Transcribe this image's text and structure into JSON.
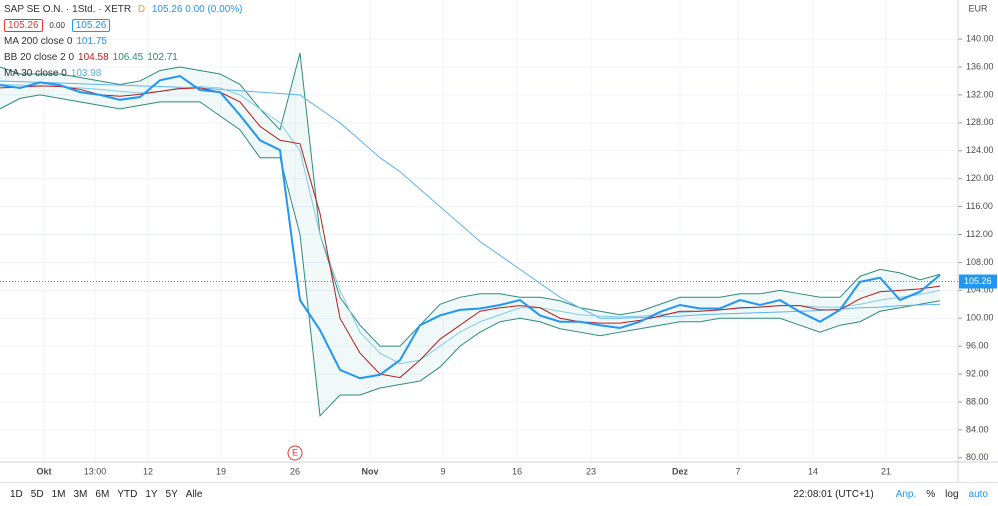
{
  "header": {
    "symbol": "SAP SE O.N. · 1Std. · XETR",
    "bid": "105.26",
    "spread": "0.00",
    "ask": "105.26",
    "change": "105.26 0.00 (0.00%)",
    "badge": "D"
  },
  "indicators": [
    {
      "name": "MA 200 close 0",
      "values": [
        "101.75"
      ]
    },
    {
      "name": "BB 20 close 2 0",
      "values": [
        "104.58",
        "106.45",
        "102.71"
      ]
    },
    {
      "name": "MA 30 close 0",
      "values": [
        "103.98"
      ]
    }
  ],
  "currency": "EUR",
  "event_marker": "E",
  "toolbar": {
    "ranges": [
      "1D",
      "5D",
      "1M",
      "3M",
      "6M",
      "YTD",
      "1Y",
      "5Y",
      "Alle"
    ],
    "clock": "22:08:01 (UTC+1)",
    "options": [
      "Anp.",
      "%",
      "log",
      "auto"
    ]
  },
  "chart_data": {
    "type": "line",
    "x": [
      0,
      2,
      4,
      6,
      8,
      10,
      12,
      14,
      16,
      18,
      20,
      22,
      24,
      26,
      28,
      30,
      32,
      34,
      36,
      38,
      40,
      42,
      44,
      46,
      48,
      50,
      52,
      54,
      56,
      58,
      60,
      62,
      64,
      66,
      68,
      70,
      72,
      74,
      76,
      78,
      80,
      82,
      84,
      86,
      88,
      90,
      92,
      94
    ],
    "series": [
      {
        "name": "BB upper",
        "color": "#2e8b7a",
        "values": [
          136,
          135,
          135,
          135,
          134.5,
          134,
          133.5,
          134,
          135.5,
          136,
          135.5,
          135,
          133.5,
          130,
          127,
          138,
          112,
          103,
          99,
          96,
          96,
          99,
          102,
          103,
          103.5,
          103.5,
          103,
          103,
          102.5,
          101.5,
          101,
          100.5,
          101,
          102,
          103,
          103,
          103,
          103.5,
          103.5,
          104,
          103.5,
          103,
          103,
          106,
          107,
          106.5,
          105.5,
          106.3
        ]
      },
      {
        "name": "BB lower",
        "color": "#2e8b7a",
        "values": [
          130,
          131.5,
          132,
          131.5,
          131,
          130.5,
          130,
          130.5,
          131,
          131,
          131,
          129,
          127,
          123,
          123,
          112,
          86,
          89,
          89,
          90,
          90.5,
          91,
          93,
          96,
          98,
          99.5,
          100,
          99.5,
          98.5,
          98,
          97.5,
          98,
          98.5,
          99,
          99.5,
          99.5,
          100,
          100,
          100,
          100,
          99,
          98,
          99,
          99.5,
          101,
          101.5,
          102,
          102.5
        ]
      },
      {
        "name": "MA 200",
        "color": "#5eb3f0",
        "values": [
          134,
          133.9,
          133.8,
          133.7,
          133.6,
          133.5,
          133.4,
          133.3,
          133.2,
          133.1,
          133,
          132.8,
          132.6,
          132.4,
          132.2,
          132,
          130,
          128,
          125.5,
          123,
          121,
          118.5,
          116,
          113.5,
          111,
          109,
          107,
          105,
          103,
          101.5,
          100,
          100,
          100.1,
          100.2,
          100.3,
          100.5,
          100.6,
          100.7,
          100.8,
          100.9,
          101,
          101.1,
          101.3,
          101.5,
          101.6,
          101.8,
          101.9,
          102
        ]
      },
      {
        "name": "MA 30",
        "color": "#80cbe8",
        "values": [
          133.5,
          133.4,
          133.3,
          133.2,
          133,
          132.8,
          132.5,
          132.3,
          132.5,
          133,
          133.2,
          133,
          132,
          130,
          128,
          124,
          112,
          104,
          98,
          95,
          93.5,
          94,
          96,
          98,
          99.5,
          100.5,
          101.5,
          101.5,
          101,
          100.5,
          100.3,
          100.2,
          100.3,
          100.5,
          100.8,
          101,
          101.2,
          101.4,
          101.6,
          101.8,
          101.8,
          101.6,
          101.6,
          102,
          102.6,
          103,
          103.4,
          104
        ]
      },
      {
        "name": "BB basis",
        "color": "#b71c1c",
        "values": [
          133,
          133.1,
          133.3,
          133.2,
          132.8,
          132,
          131.8,
          132.1,
          132.5,
          132.9,
          133,
          132.4,
          131,
          127.5,
          125.5,
          125,
          115,
          100,
          95,
          92,
          91.5,
          94,
          97,
          99,
          101,
          101.5,
          101.8,
          101.5,
          100,
          99.5,
          99.3,
          99.3,
          99.7,
          100.3,
          101,
          101,
          101.2,
          101.5,
          101.6,
          101.8,
          101.8,
          101.2,
          101.2,
          102.8,
          103.8,
          104,
          104.2,
          104.6
        ]
      },
      {
        "name": "SAP SE O.N.",
        "color": "#2196f3",
        "values": [
          133.4,
          133,
          133.8,
          133.4,
          132.4,
          132,
          131.3,
          131.7,
          134.1,
          134.7,
          132.7,
          132.4,
          129.1,
          125.5,
          124.1,
          102.6,
          98.3,
          92.6,
          91.4,
          91.9,
          94,
          99,
          100.4,
          101.2,
          101.4,
          101.9,
          102.6,
          100.4,
          99.5,
          99.5,
          99,
          98.6,
          99.5,
          100.9,
          101.9,
          101.4,
          101.4,
          102.6,
          101.9,
          102.6,
          100.9,
          99.5,
          101.2,
          105.2,
          105.8,
          102.6,
          103.8,
          106.2
        ]
      }
    ],
    "last_price": {
      "value": 105.26,
      "label": "105.26"
    },
    "xlim": [
      0,
      95.8
    ],
    "xticks": [
      {
        "value": 4.4,
        "label": "Okt"
      },
      {
        "value": 9.5,
        "label": "13:00"
      },
      {
        "value": 14.8,
        "label": "12"
      },
      {
        "value": 22.1,
        "label": "19"
      },
      {
        "value": 29.5,
        "label": "26"
      },
      {
        "value": 37,
        "label": "Nov"
      },
      {
        "value": 44.3,
        "label": "9"
      },
      {
        "value": 51.7,
        "label": "16"
      },
      {
        "value": 59.1,
        "label": "23"
      },
      {
        "value": 68,
        "label": "Dez"
      },
      {
        "value": 73.8,
        "label": "7"
      },
      {
        "value": 81.3,
        "label": "14"
      },
      {
        "value": 88.6,
        "label": "21"
      }
    ],
    "ylim": [
      79.4,
      145.6
    ],
    "yticks": [
      {
        "value": 80,
        "label": "80.00"
      },
      {
        "value": 84,
        "label": "84.00"
      },
      {
        "value": 88,
        "label": "88.00"
      },
      {
        "value": 92,
        "label": "92.00"
      },
      {
        "value": 96,
        "label": "96.00"
      },
      {
        "value": 100,
        "label": "100.00"
      },
      {
        "value": 104,
        "label": "104.00"
      },
      {
        "value": 108,
        "label": "108.00"
      },
      {
        "value": 112,
        "label": "112.00"
      },
      {
        "value": 116,
        "label": "116.00"
      },
      {
        "value": 120,
        "label": "120.00"
      },
      {
        "value": 124,
        "label": "124.00"
      },
      {
        "value": 128,
        "label": "128.00"
      },
      {
        "value": 132,
        "label": "132.00"
      },
      {
        "value": 136,
        "label": "136.00"
      },
      {
        "value": 140,
        "label": "140.00"
      }
    ],
    "grid": true
  }
}
